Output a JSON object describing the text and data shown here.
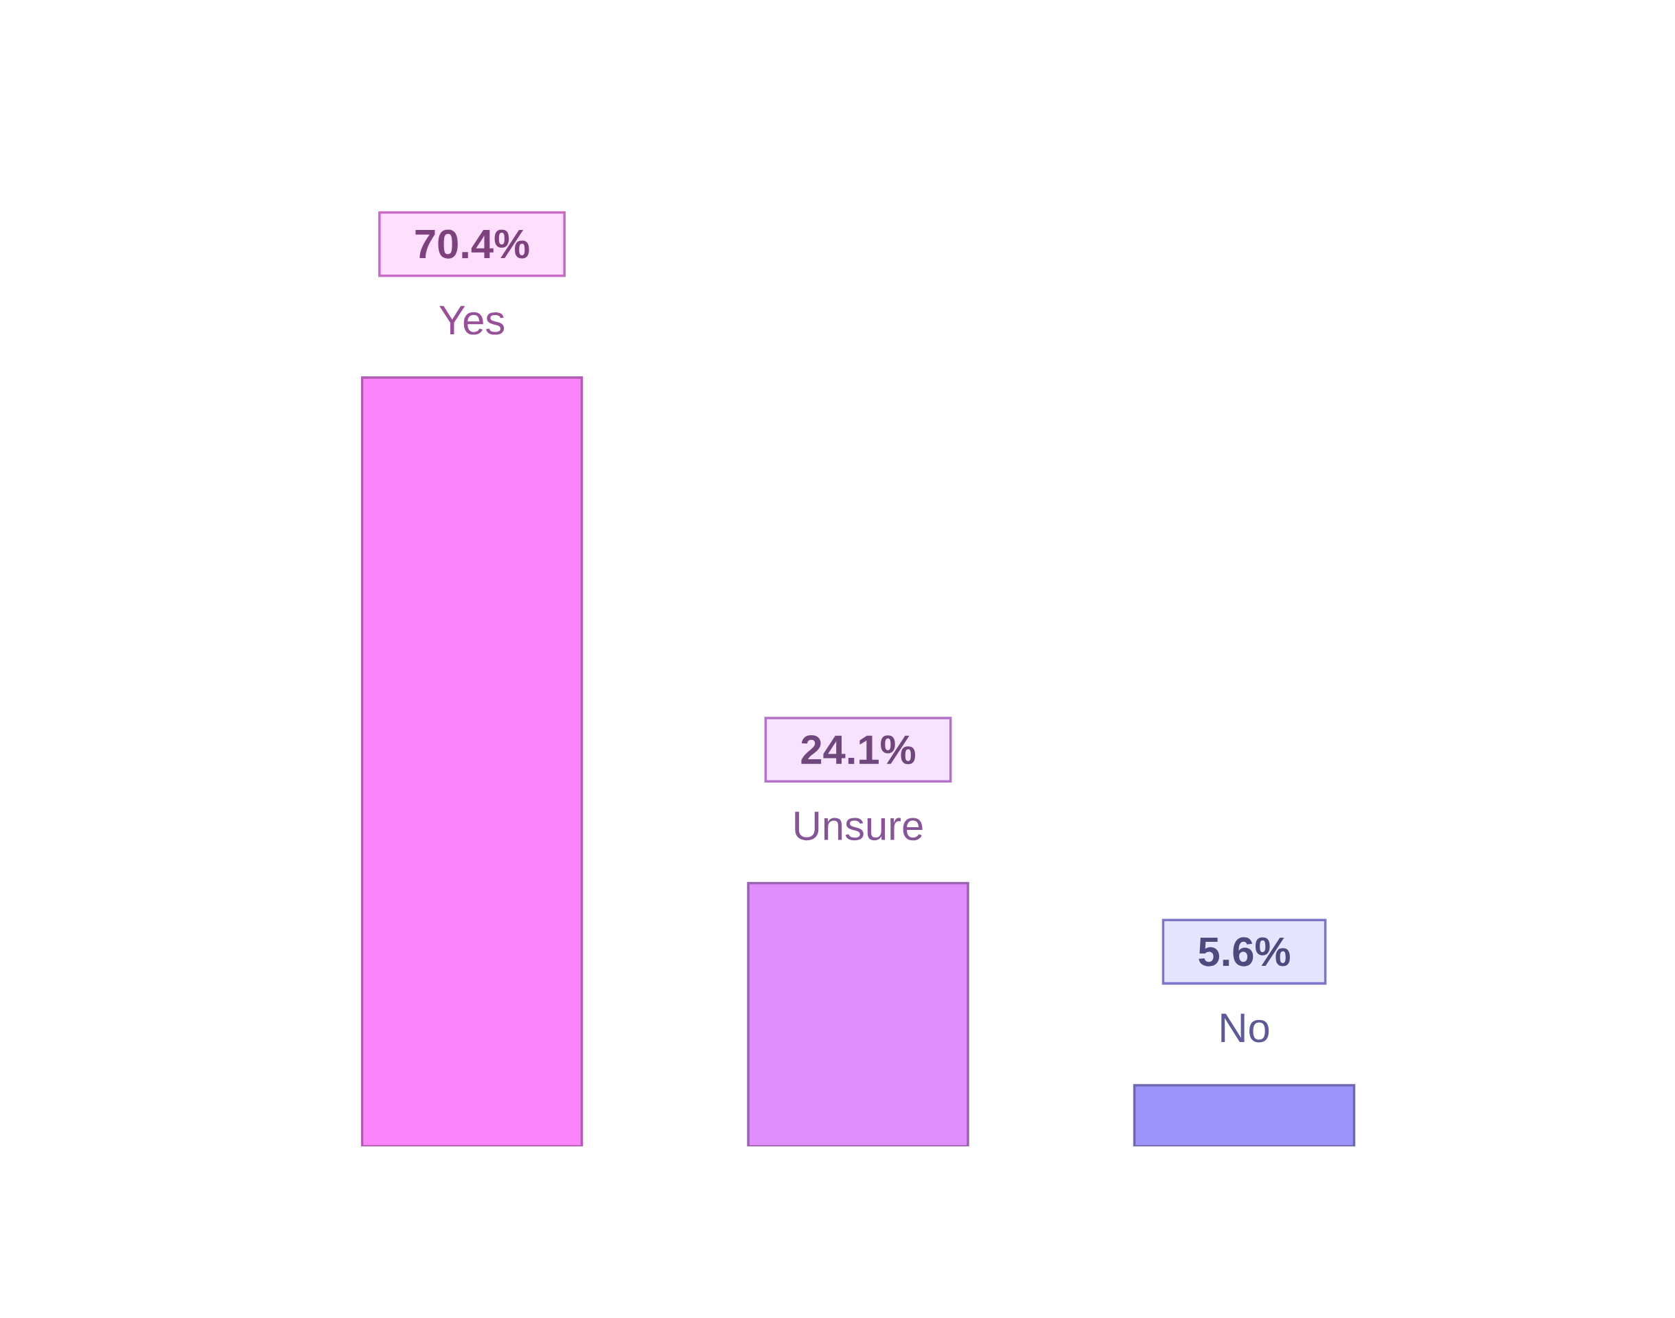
{
  "chart_data": {
    "type": "bar",
    "categories": [
      "Yes",
      "Unsure",
      "No"
    ],
    "values": [
      70.4,
      24.1,
      5.6
    ],
    "value_labels": [
      "70.4%",
      "24.1%",
      "5.6%"
    ],
    "colors": [
      "#fb84fb",
      "#df8efb",
      "#9d94fb"
    ],
    "tick_labels": false
  }
}
